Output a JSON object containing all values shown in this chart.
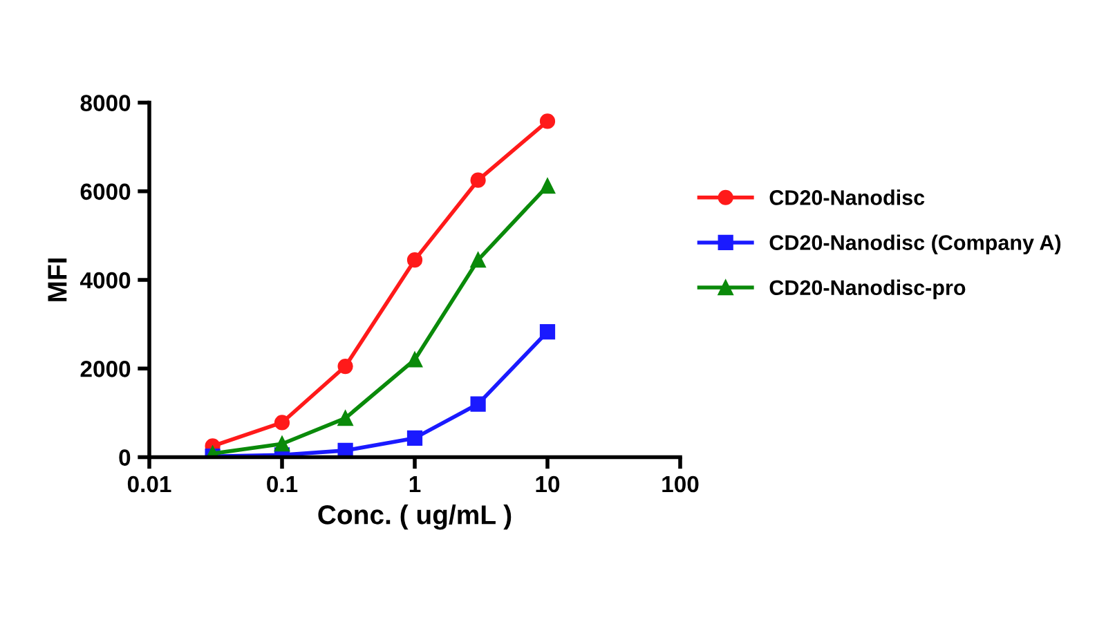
{
  "chart_data": {
    "type": "line",
    "xlabel": "Conc. ( ug/mL )",
    "ylabel": "MFI",
    "x": [
      0.03,
      0.1,
      0.3,
      1,
      3,
      10
    ],
    "series": [
      {
        "name": "CD20-Nanodisc",
        "color": "#ff1a1a",
        "marker": "circle",
        "values": [
          250,
          780,
          2050,
          4450,
          6250,
          7580
        ]
      },
      {
        "name": "CD20-Nanodisc (Company A)",
        "color": "#1a1aff",
        "marker": "square",
        "values": [
          20,
          50,
          150,
          430,
          1200,
          2830
        ]
      },
      {
        "name": "CD20-Nanodisc-pro",
        "color": "#0a8a0a",
        "marker": "triangle",
        "values": [
          80,
          300,
          880,
          2200,
          4450,
          6120
        ]
      }
    ],
    "log": "x",
    "xlim": [
      0.01,
      100
    ],
    "xticks": [
      0.01,
      0.1,
      1,
      10,
      100
    ],
    "ylim": [
      0,
      8000
    ],
    "yticks": [
      0,
      2000,
      4000,
      6000,
      8000
    ],
    "grid": false,
    "legend": "right",
    "line_style": "solid"
  }
}
